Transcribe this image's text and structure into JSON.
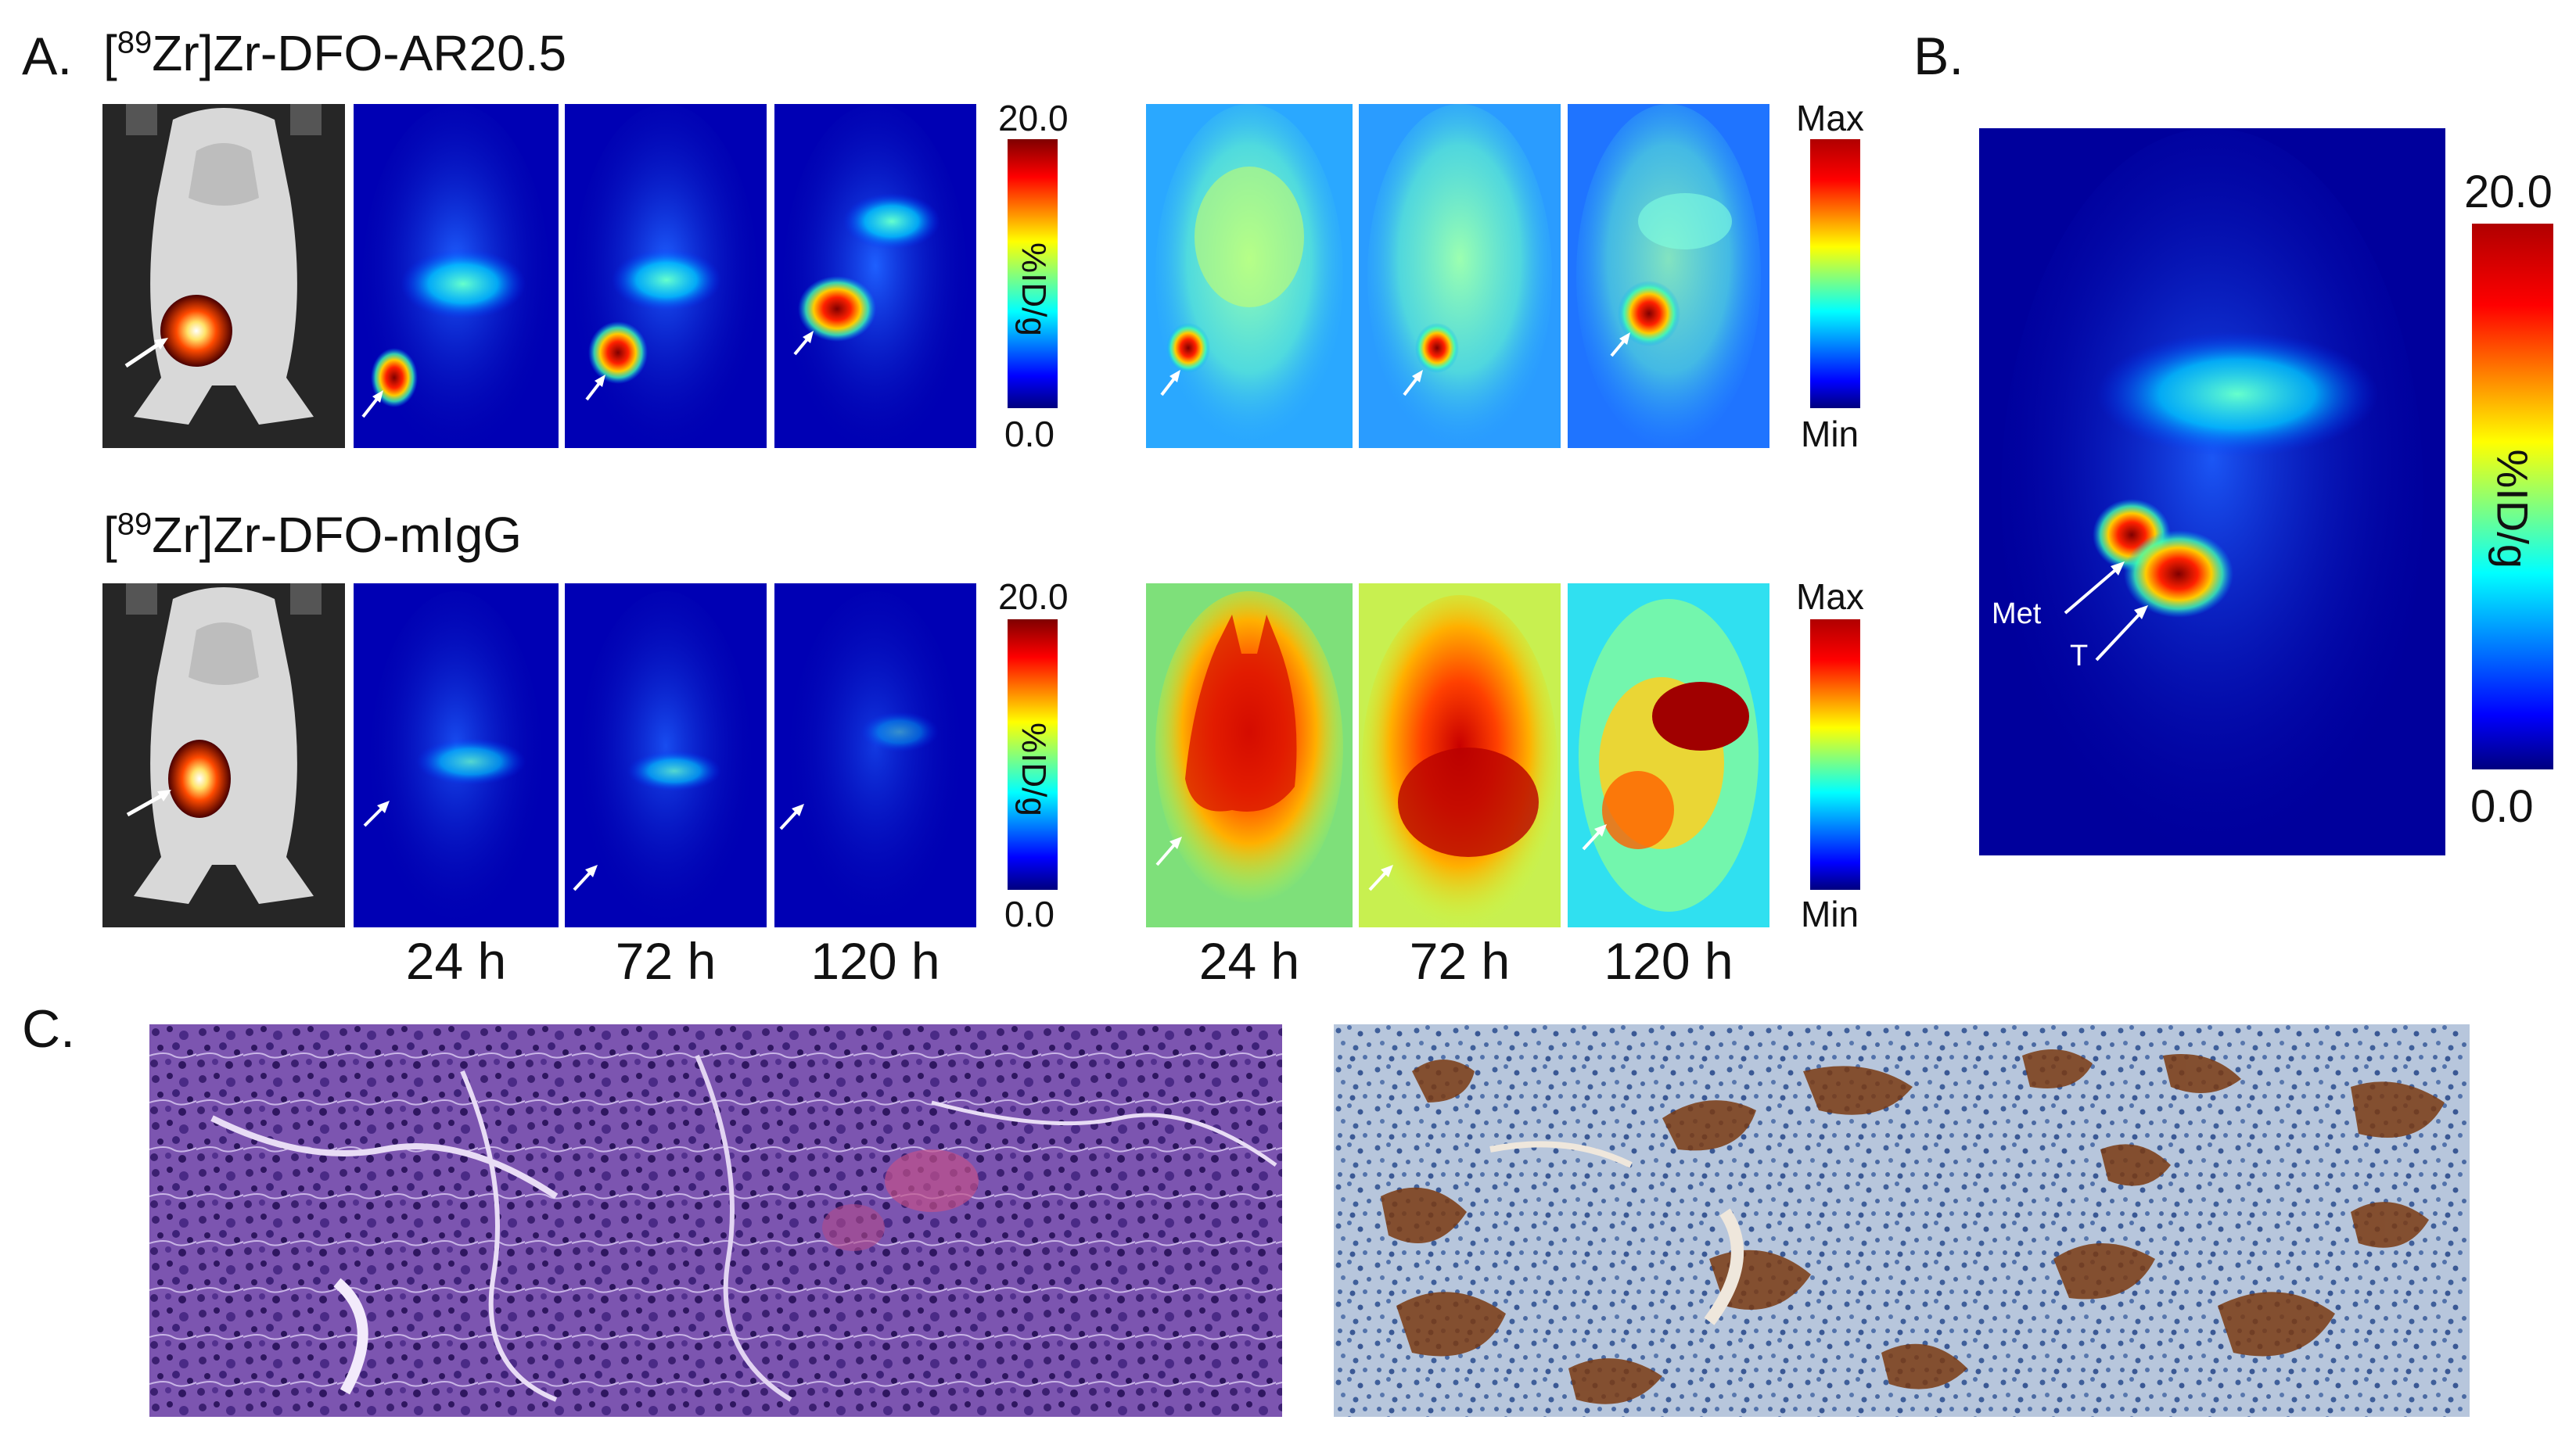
{
  "panels": {
    "a": {
      "label": "A.",
      "probe1": {
        "sup": "89",
        "pre": "[",
        "post": "Zr]Zr-DFO-AR20.5"
      },
      "probe2": {
        "sup": "89",
        "pre": "[",
        "post": "Zr]Zr-DFO-mIgG"
      },
      "abs_scale": {
        "max": "20.0",
        "min": "0.0",
        "unit": "%ID/g"
      },
      "rel_scale": {
        "max": "Max",
        "min": "Min"
      },
      "time_labels": [
        "24 h",
        "72 h",
        "120 h"
      ]
    },
    "b": {
      "label": "B.",
      "scale": {
        "max": "20.0",
        "min": "0.0",
        "unit": "%ID/g"
      },
      "annotations": {
        "met": "Met",
        "tumor": "T"
      }
    },
    "c": {
      "label": "C."
    }
  },
  "colors": {
    "jet_low": "#00007f",
    "jet_mid": "#00ffff",
    "jet_high": "#ff0000",
    "he_stain": "#6a3f9e",
    "ihc_brown": "#7a3a12",
    "ihc_blue": "#a8bad6"
  }
}
